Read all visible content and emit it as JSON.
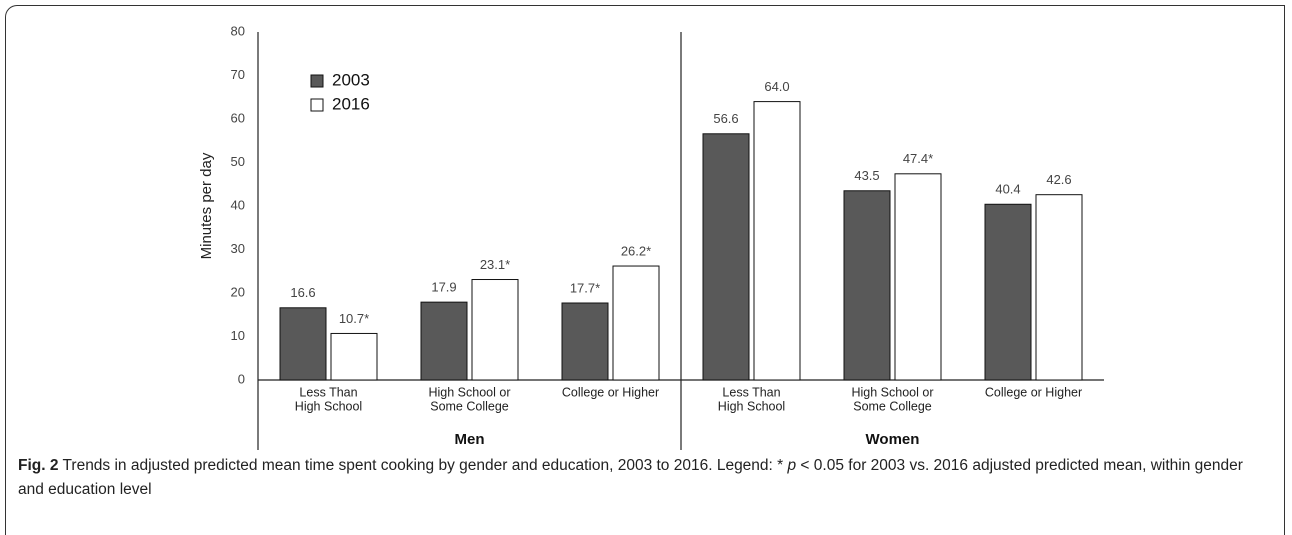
{
  "chart_data": {
    "type": "bar",
    "y_label": "Minutes per day",
    "categories": [
      [
        "Less Than",
        "High School"
      ],
      [
        "High School or",
        "Some College"
      ],
      [
        "College or Higher"
      ],
      [
        "Less Than",
        "High School"
      ],
      [
        "High School or",
        "Some College"
      ],
      [
        "College or Higher"
      ]
    ],
    "group_names": [
      "Men",
      "Women"
    ],
    "series": [
      {
        "name": "2003",
        "color": "#595959",
        "values": [
          16.6,
          17.9,
          17.7,
          56.6,
          43.5,
          40.4
        ],
        "value_labels": [
          "16.6",
          "17.9",
          "17.7*",
          "56.6",
          "43.5",
          "40.4"
        ]
      },
      {
        "name": "2016",
        "color": "#ffffff",
        "values": [
          10.7,
          23.1,
          26.2,
          64.0,
          47.4,
          42.6
        ],
        "value_labels": [
          "10.7*",
          "23.1*",
          "26.2*",
          "64.0",
          "47.4*",
          "42.6"
        ]
      }
    ],
    "ylim": [
      0,
      80
    ],
    "yticks": [
      0,
      10,
      20,
      30,
      40,
      50,
      60,
      70,
      80
    ],
    "grid": false,
    "legend": "upper-left"
  },
  "figure": {
    "label": "Fig. 2",
    "caption_parts": [
      "Trends in adjusted predicted mean time spent cooking by gender and education, 2003 to 2016. Legend: * ",
      "p",
      " < 0.05 for 2003 vs. 2016 adjusted predicted mean, within gender and education level"
    ]
  }
}
